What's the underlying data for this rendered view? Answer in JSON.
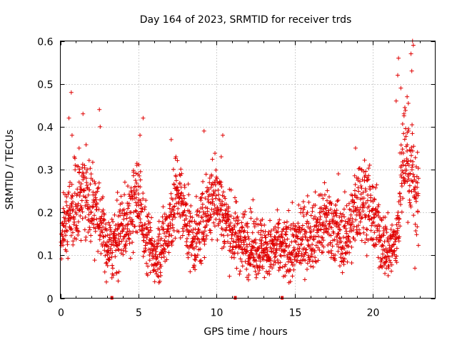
{
  "chart_data": {
    "type": "scatter",
    "title": "Day 164 of 2023, SRMTID for receiver trds",
    "xlabel": "GPS time / hours",
    "ylabel": "SRMTID / TECUs",
    "xlim": [
      0,
      24
    ],
    "ylim": [
      0,
      0.6
    ],
    "xticks": [
      0,
      5,
      10,
      15,
      20
    ],
    "yticks": [
      0,
      0.1,
      0.2,
      0.3,
      0.4,
      0.5,
      0.6
    ],
    "xtick_labels": [
      "0",
      "5",
      "10",
      "15",
      "20"
    ],
    "ytick_labels": [
      "0",
      "0.1",
      "0.2",
      "0.3",
      "0.4",
      "0.5",
      "0.6"
    ],
    "grid": true,
    "marker": "+",
    "color": "#e00000",
    "series": [
      {
        "name": "SRMTID",
        "trend": {
          "x": [
            0,
            0.5,
            1.0,
            1.5,
            2.0,
            2.5,
            3.0,
            3.5,
            4.0,
            4.5,
            5.0,
            5.5,
            6.0,
            6.5,
            7.0,
            7.5,
            8.0,
            8.5,
            9.0,
            9.5,
            10.0,
            10.5,
            11.0,
            11.5,
            12.0,
            12.5,
            13.0,
            13.5,
            14.0,
            14.5,
            15.0,
            15.5,
            16.0,
            16.5,
            17.0,
            17.5,
            18.0,
            18.5,
            19.0,
            19.5,
            20.0,
            20.5,
            21.0,
            21.5,
            22.0,
            22.5,
            22.9
          ],
          "y": [
            0.14,
            0.17,
            0.21,
            0.26,
            0.22,
            0.19,
            0.11,
            0.13,
            0.17,
            0.19,
            0.24,
            0.14,
            0.1,
            0.12,
            0.18,
            0.24,
            0.19,
            0.13,
            0.16,
            0.22,
            0.24,
            0.19,
            0.15,
            0.14,
            0.13,
            0.12,
            0.12,
            0.11,
            0.12,
            0.11,
            0.12,
            0.14,
            0.15,
            0.16,
            0.18,
            0.17,
            0.13,
            0.16,
            0.22,
            0.24,
            0.19,
            0.14,
            0.11,
            0.13,
            0.34,
            0.3,
            0.22
          ]
        },
        "spikes": [
          {
            "x": 0.7,
            "y": 0.48
          },
          {
            "x": 0.55,
            "y": 0.42
          },
          {
            "x": 0.75,
            "y": 0.38
          },
          {
            "x": 1.45,
            "y": 0.43
          },
          {
            "x": 1.2,
            "y": 0.35
          },
          {
            "x": 2.5,
            "y": 0.44
          },
          {
            "x": 2.55,
            "y": 0.4
          },
          {
            "x": 5.3,
            "y": 0.42
          },
          {
            "x": 5.1,
            "y": 0.38
          },
          {
            "x": 7.1,
            "y": 0.37
          },
          {
            "x": 7.4,
            "y": 0.33
          },
          {
            "x": 9.2,
            "y": 0.39
          },
          {
            "x": 10.4,
            "y": 0.38
          },
          {
            "x": 10.3,
            "y": 0.33
          },
          {
            "x": 4.9,
            "y": 0.31
          },
          {
            "x": 17.8,
            "y": 0.29
          },
          {
            "x": 18.9,
            "y": 0.35
          },
          {
            "x": 19.3,
            "y": 0.3
          },
          {
            "x": 21.5,
            "y": 0.46
          },
          {
            "x": 21.6,
            "y": 0.52
          },
          {
            "x": 21.65,
            "y": 0.56
          },
          {
            "x": 21.8,
            "y": 0.49
          },
          {
            "x": 22.0,
            "y": 0.43
          },
          {
            "x": 22.2,
            "y": 0.47
          },
          {
            "x": 22.45,
            "y": 0.57
          },
          {
            "x": 22.5,
            "y": 0.53
          },
          {
            "x": 22.55,
            "y": 0.6
          },
          {
            "x": 22.6,
            "y": 0.59
          },
          {
            "x": 22.3,
            "y": 0.39
          },
          {
            "x": 22.7,
            "y": 0.07
          },
          {
            "x": 3.7,
            "y": 0.04
          },
          {
            "x": 3.6,
            "y": 0.06
          }
        ],
        "gaps": [
          3.3,
          11.2,
          14.2
        ]
      }
    ]
  }
}
